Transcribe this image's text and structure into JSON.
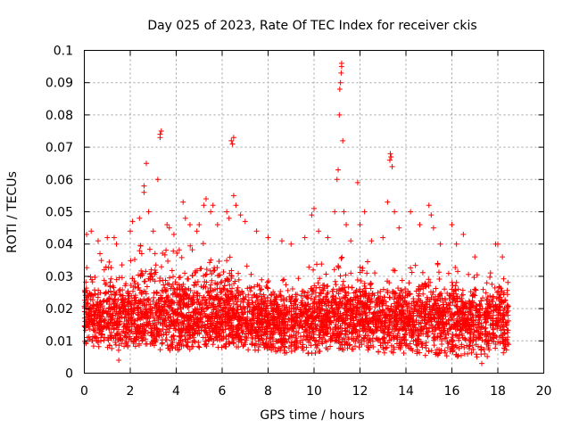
{
  "chart_data": {
    "type": "scatter",
    "title": "Day 025 of 2023, Rate Of TEC Index for receiver ckis",
    "xlabel": "GPS time / hours",
    "ylabel": "ROTI / TECUs",
    "xlim": [
      0,
      20
    ],
    "ylim": [
      0,
      0.1
    ],
    "xticks": [
      "0",
      "2",
      "4",
      "6",
      "8",
      "10",
      "12",
      "14",
      "16",
      "18",
      "20"
    ],
    "yticks": [
      "0",
      "0.01",
      "0.02",
      "0.03",
      "0.04",
      "0.05",
      "0.06",
      "0.07",
      "0.08",
      "0.09",
      "0.1"
    ],
    "grid": true,
    "marker": "+",
    "color": "#ff0000",
    "x_extent": [
      0,
      18.5
    ],
    "envelope": [
      [
        0,
        0.009,
        0.032
      ],
      [
        0.5,
        0.008,
        0.038
      ],
      [
        1,
        0.008,
        0.036
      ],
      [
        1.5,
        0.007,
        0.034
      ],
      [
        2,
        0.008,
        0.036
      ],
      [
        2.5,
        0.008,
        0.04
      ],
      [
        3,
        0.007,
        0.042
      ],
      [
        3.5,
        0.007,
        0.04
      ],
      [
        4,
        0.007,
        0.038
      ],
      [
        4.5,
        0.007,
        0.04
      ],
      [
        5,
        0.008,
        0.042
      ],
      [
        5.5,
        0.008,
        0.044
      ],
      [
        6,
        0.008,
        0.04
      ],
      [
        6.5,
        0.008,
        0.038
      ],
      [
        7,
        0.007,
        0.034
      ],
      [
        7.5,
        0.007,
        0.032
      ],
      [
        8,
        0.007,
        0.03
      ],
      [
        8.5,
        0.006,
        0.03
      ],
      [
        9,
        0.006,
        0.03
      ],
      [
        9.5,
        0.006,
        0.032
      ],
      [
        10,
        0.006,
        0.035
      ],
      [
        10.5,
        0.007,
        0.034
      ],
      [
        11,
        0.007,
        0.036
      ],
      [
        11.5,
        0.007,
        0.036
      ],
      [
        12,
        0.007,
        0.038
      ],
      [
        12.5,
        0.007,
        0.034
      ],
      [
        13,
        0.006,
        0.032
      ],
      [
        13.5,
        0.006,
        0.034
      ],
      [
        14,
        0.006,
        0.033
      ],
      [
        14.5,
        0.006,
        0.034
      ],
      [
        15,
        0.005,
        0.036
      ],
      [
        15.5,
        0.005,
        0.034
      ],
      [
        16,
        0.005,
        0.036
      ],
      [
        16.5,
        0.005,
        0.034
      ],
      [
        17,
        0.005,
        0.031
      ],
      [
        17.5,
        0.005,
        0.029
      ],
      [
        18,
        0.006,
        0.035
      ],
      [
        18.5,
        0.006,
        0.03
      ]
    ],
    "outliers": [
      [
        0.1,
        0.043
      ],
      [
        0.3,
        0.044
      ],
      [
        0.6,
        0.041
      ],
      [
        1.0,
        0.042
      ],
      [
        1.3,
        0.042
      ],
      [
        1.5,
        0.004
      ],
      [
        1.4,
        0.04
      ],
      [
        2.0,
        0.044
      ],
      [
        2.1,
        0.047
      ],
      [
        2.4,
        0.048
      ],
      [
        2.5,
        0.037
      ],
      [
        2.6,
        0.056
      ],
      [
        2.6,
        0.058
      ],
      [
        2.7,
        0.065
      ],
      [
        2.8,
        0.05
      ],
      [
        3.0,
        0.044
      ],
      [
        3.2,
        0.06
      ],
      [
        3.3,
        0.074
      ],
      [
        3.35,
        0.075
      ],
      [
        3.3,
        0.073
      ],
      [
        3.6,
        0.046
      ],
      [
        3.7,
        0.045
      ],
      [
        3.9,
        0.043
      ],
      [
        4.3,
        0.053
      ],
      [
        4.4,
        0.048
      ],
      [
        4.6,
        0.046
      ],
      [
        4.9,
        0.044
      ],
      [
        5.0,
        0.046
      ],
      [
        5.2,
        0.052
      ],
      [
        5.3,
        0.054
      ],
      [
        5.5,
        0.05
      ],
      [
        5.6,
        0.052
      ],
      [
        5.8,
        0.046
      ],
      [
        6.2,
        0.05
      ],
      [
        6.3,
        0.048
      ],
      [
        6.4,
        0.072
      ],
      [
        6.45,
        0.071
      ],
      [
        6.5,
        0.073
      ],
      [
        6.5,
        0.055
      ],
      [
        6.6,
        0.052
      ],
      [
        6.8,
        0.049
      ],
      [
        7.0,
        0.047
      ],
      [
        7.5,
        0.044
      ],
      [
        8.0,
        0.042
      ],
      [
        8.6,
        0.041
      ],
      [
        9.0,
        0.04
      ],
      [
        9.6,
        0.042
      ],
      [
        9.9,
        0.049
      ],
      [
        10.0,
        0.051
      ],
      [
        10.2,
        0.044
      ],
      [
        10.6,
        0.042
      ],
      [
        10.9,
        0.05
      ],
      [
        11.0,
        0.06
      ],
      [
        11.05,
        0.063
      ],
      [
        11.1,
        0.08
      ],
      [
        11.12,
        0.088
      ],
      [
        11.15,
        0.09
      ],
      [
        11.18,
        0.093
      ],
      [
        11.2,
        0.096
      ],
      [
        11.2,
        0.095
      ],
      [
        11.25,
        0.072
      ],
      [
        11.3,
        0.05
      ],
      [
        11.4,
        0.046
      ],
      [
        11.6,
        0.041
      ],
      [
        11.9,
        0.059
      ],
      [
        12.0,
        0.046
      ],
      [
        12.2,
        0.05
      ],
      [
        12.5,
        0.041
      ],
      [
        13.0,
        0.042
      ],
      [
        13.2,
        0.053
      ],
      [
        13.3,
        0.066
      ],
      [
        13.32,
        0.068
      ],
      [
        13.35,
        0.067
      ],
      [
        13.4,
        0.064
      ],
      [
        13.5,
        0.05
      ],
      [
        13.7,
        0.045
      ],
      [
        14.2,
        0.05
      ],
      [
        14.6,
        0.046
      ],
      [
        15.0,
        0.052
      ],
      [
        15.1,
        0.049
      ],
      [
        15.2,
        0.045
      ],
      [
        15.5,
        0.04
      ],
      [
        16.0,
        0.046
      ],
      [
        16.2,
        0.04
      ],
      [
        16.5,
        0.043
      ],
      [
        17.0,
        0.036
      ],
      [
        17.3,
        0.003
      ],
      [
        17.9,
        0.04
      ],
      [
        18.0,
        0.04
      ],
      [
        18.2,
        0.036
      ]
    ]
  }
}
